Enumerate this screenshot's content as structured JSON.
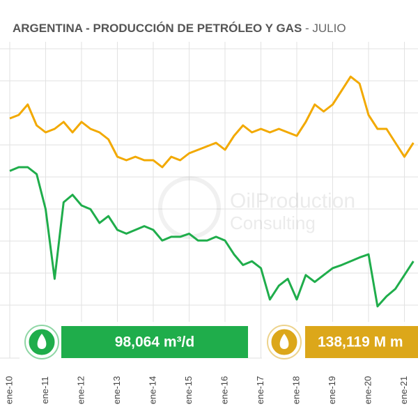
{
  "chart_data": {
    "type": "line",
    "title": "ARGENTINA - PRODUCCIÓN DE PETRÓLEO Y GAS",
    "subtitle": "- JULIO",
    "watermark": [
      "OilProduction",
      "Consulting"
    ],
    "categories": [
      "ene-10",
      null,
      null,
      null,
      "ene-11",
      null,
      null,
      null,
      "ene-12",
      null,
      null,
      null,
      "ene-13",
      null,
      null,
      null,
      "ene-14",
      null,
      null,
      null,
      "ene-15",
      null,
      null,
      null,
      "ene-16",
      null,
      null,
      null,
      "ene-17",
      null,
      null,
      null,
      "ene-18",
      null,
      null,
      null,
      "ene-19",
      null,
      null,
      null,
      "ene-20",
      null,
      null,
      null,
      "ene-21",
      null
    ],
    "ylim": [
      60000,
      110000
    ],
    "y2lim": [
      60,
      150
    ],
    "series": [
      {
        "color": "#1fad4b",
        "values": [
          89400,
          90000,
          90000,
          88900,
          83300,
          72200,
          84400,
          85600,
          83900,
          83300,
          81100,
          82200,
          80000,
          79400,
          80000,
          80600,
          80000,
          78300,
          78900,
          78900,
          79400,
          78300,
          78300,
          78900,
          78300,
          76100,
          74400,
          75000,
          73900,
          68900,
          71100,
          72200,
          68900,
          72800,
          71700,
          72800,
          73900,
          74400,
          75000,
          75600,
          76100,
          67800,
          69400,
          70600,
          72800,
          75000
        ]
      },
      {
        "color": "#f2a900",
        "axis": "y2",
        "values": [
          128,
          129,
          132,
          126,
          124,
          125,
          127,
          124,
          127,
          125,
          124,
          122,
          117,
          116,
          117,
          116,
          116,
          114,
          117,
          116,
          118,
          119,
          120,
          121,
          119,
          123,
          126,
          124,
          125,
          124,
          125,
          124,
          123,
          127,
          132,
          130,
          132,
          136,
          140,
          138,
          129,
          125,
          125,
          121,
          117,
          121
        ]
      }
    ],
    "indicators": [
      {
        "text": "98,064 m³/d",
        "color": "#1fad4b"
      },
      {
        "text": "138,119 M m",
        "color": "#dca71a"
      }
    ]
  }
}
